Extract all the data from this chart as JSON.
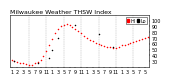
{
  "title": "Milwaukee Weather THSW Index",
  "background_color": "#ffffff",
  "plot_bg_color": "#ffffff",
  "grid_color": "#aaaaaa",
  "dot_color": "#ff0000",
  "dot_color2": "#000000",
  "ylim": [
    20,
    110
  ],
  "yticks": [
    30,
    40,
    50,
    60,
    70,
    80,
    90,
    100
  ],
  "ytick_labels": [
    "30",
    "40",
    "50",
    "60",
    "70",
    "80",
    "90",
    "100"
  ],
  "vgrid_positions": [
    6,
    12,
    18,
    24,
    30,
    36,
    42
  ],
  "thsw": [
    32,
    30,
    28,
    27,
    26,
    25,
    24,
    24,
    26,
    28,
    32,
    38,
    48,
    58,
    68,
    78,
    85,
    90,
    93,
    94,
    92,
    89,
    85,
    82,
    78,
    74,
    70,
    66,
    65,
    62,
    60,
    58,
    56,
    55,
    54,
    53,
    52,
    55,
    57,
    58,
    60,
    62,
    63,
    65,
    66,
    68,
    70,
    72
  ],
  "black_x": [
    1,
    9,
    13,
    14,
    16,
    22,
    30,
    35
  ],
  "black_y": [
    30,
    27,
    36,
    49,
    69,
    93,
    77,
    54
  ],
  "legend_hi_color": "#ff0000",
  "legend_lo_color": "#000000",
  "legend_hi": "Hi",
  "legend_lo": "Lo",
  "title_fontsize": 4.5,
  "tick_fontsize": 3.5,
  "marker_size": 1.2,
  "x_tick_positions": [
    0,
    2,
    4,
    6,
    8,
    10,
    12,
    14,
    16,
    18,
    20,
    22,
    24,
    26,
    28,
    30,
    32,
    34,
    36,
    38,
    40,
    42,
    44,
    46
  ],
  "x_tick_labels": [
    "1",
    "2",
    "3",
    "5",
    "7",
    "9",
    "11",
    "1",
    "3",
    "5",
    "7",
    "9",
    "11",
    "1",
    "3",
    "5",
    "7",
    "9",
    "11",
    "1",
    "3",
    "5",
    "7",
    "5"
  ]
}
